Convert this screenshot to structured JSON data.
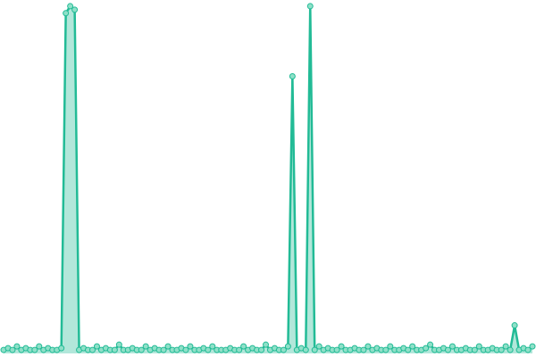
{
  "chart_data": {
    "type": "line",
    "color": "#22bb96",
    "area": true,
    "ylim": [
      0,
      100
    ],
    "values": [
      1,
      1.5,
      1,
      2,
      1,
      1.5,
      1,
      1,
      2,
      1,
      1.5,
      1,
      1,
      1.5,
      97,
      99,
      98,
      1,
      1.5,
      1,
      1,
      2,
      1,
      1.5,
      1,
      1,
      2.5,
      1,
      1,
      1.5,
      1,
      1,
      2,
      1,
      1.5,
      1,
      1,
      2,
      1,
      1,
      1.5,
      1,
      2,
      1,
      1,
      1.5,
      1,
      2,
      1,
      1,
      1,
      1.5,
      1,
      1,
      2,
      1,
      1.5,
      1,
      1,
      2.5,
      1,
      1.5,
      1,
      1,
      2,
      79,
      1,
      1.5,
      1,
      99,
      1,
      2,
      1,
      1.5,
      1,
      1,
      2,
      1,
      1,
      1.5,
      1,
      1,
      2,
      1,
      1.5,
      1,
      1,
      2,
      1,
      1,
      1.5,
      1,
      2,
      1,
      1,
      1.5,
      2.5,
      1,
      1,
      1.5,
      1,
      2,
      1,
      1,
      1.5,
      1,
      1,
      2,
      1,
      1,
      1.5,
      1,
      1,
      2,
      1,
      8,
      1,
      1.5,
      1,
      2
    ]
  }
}
